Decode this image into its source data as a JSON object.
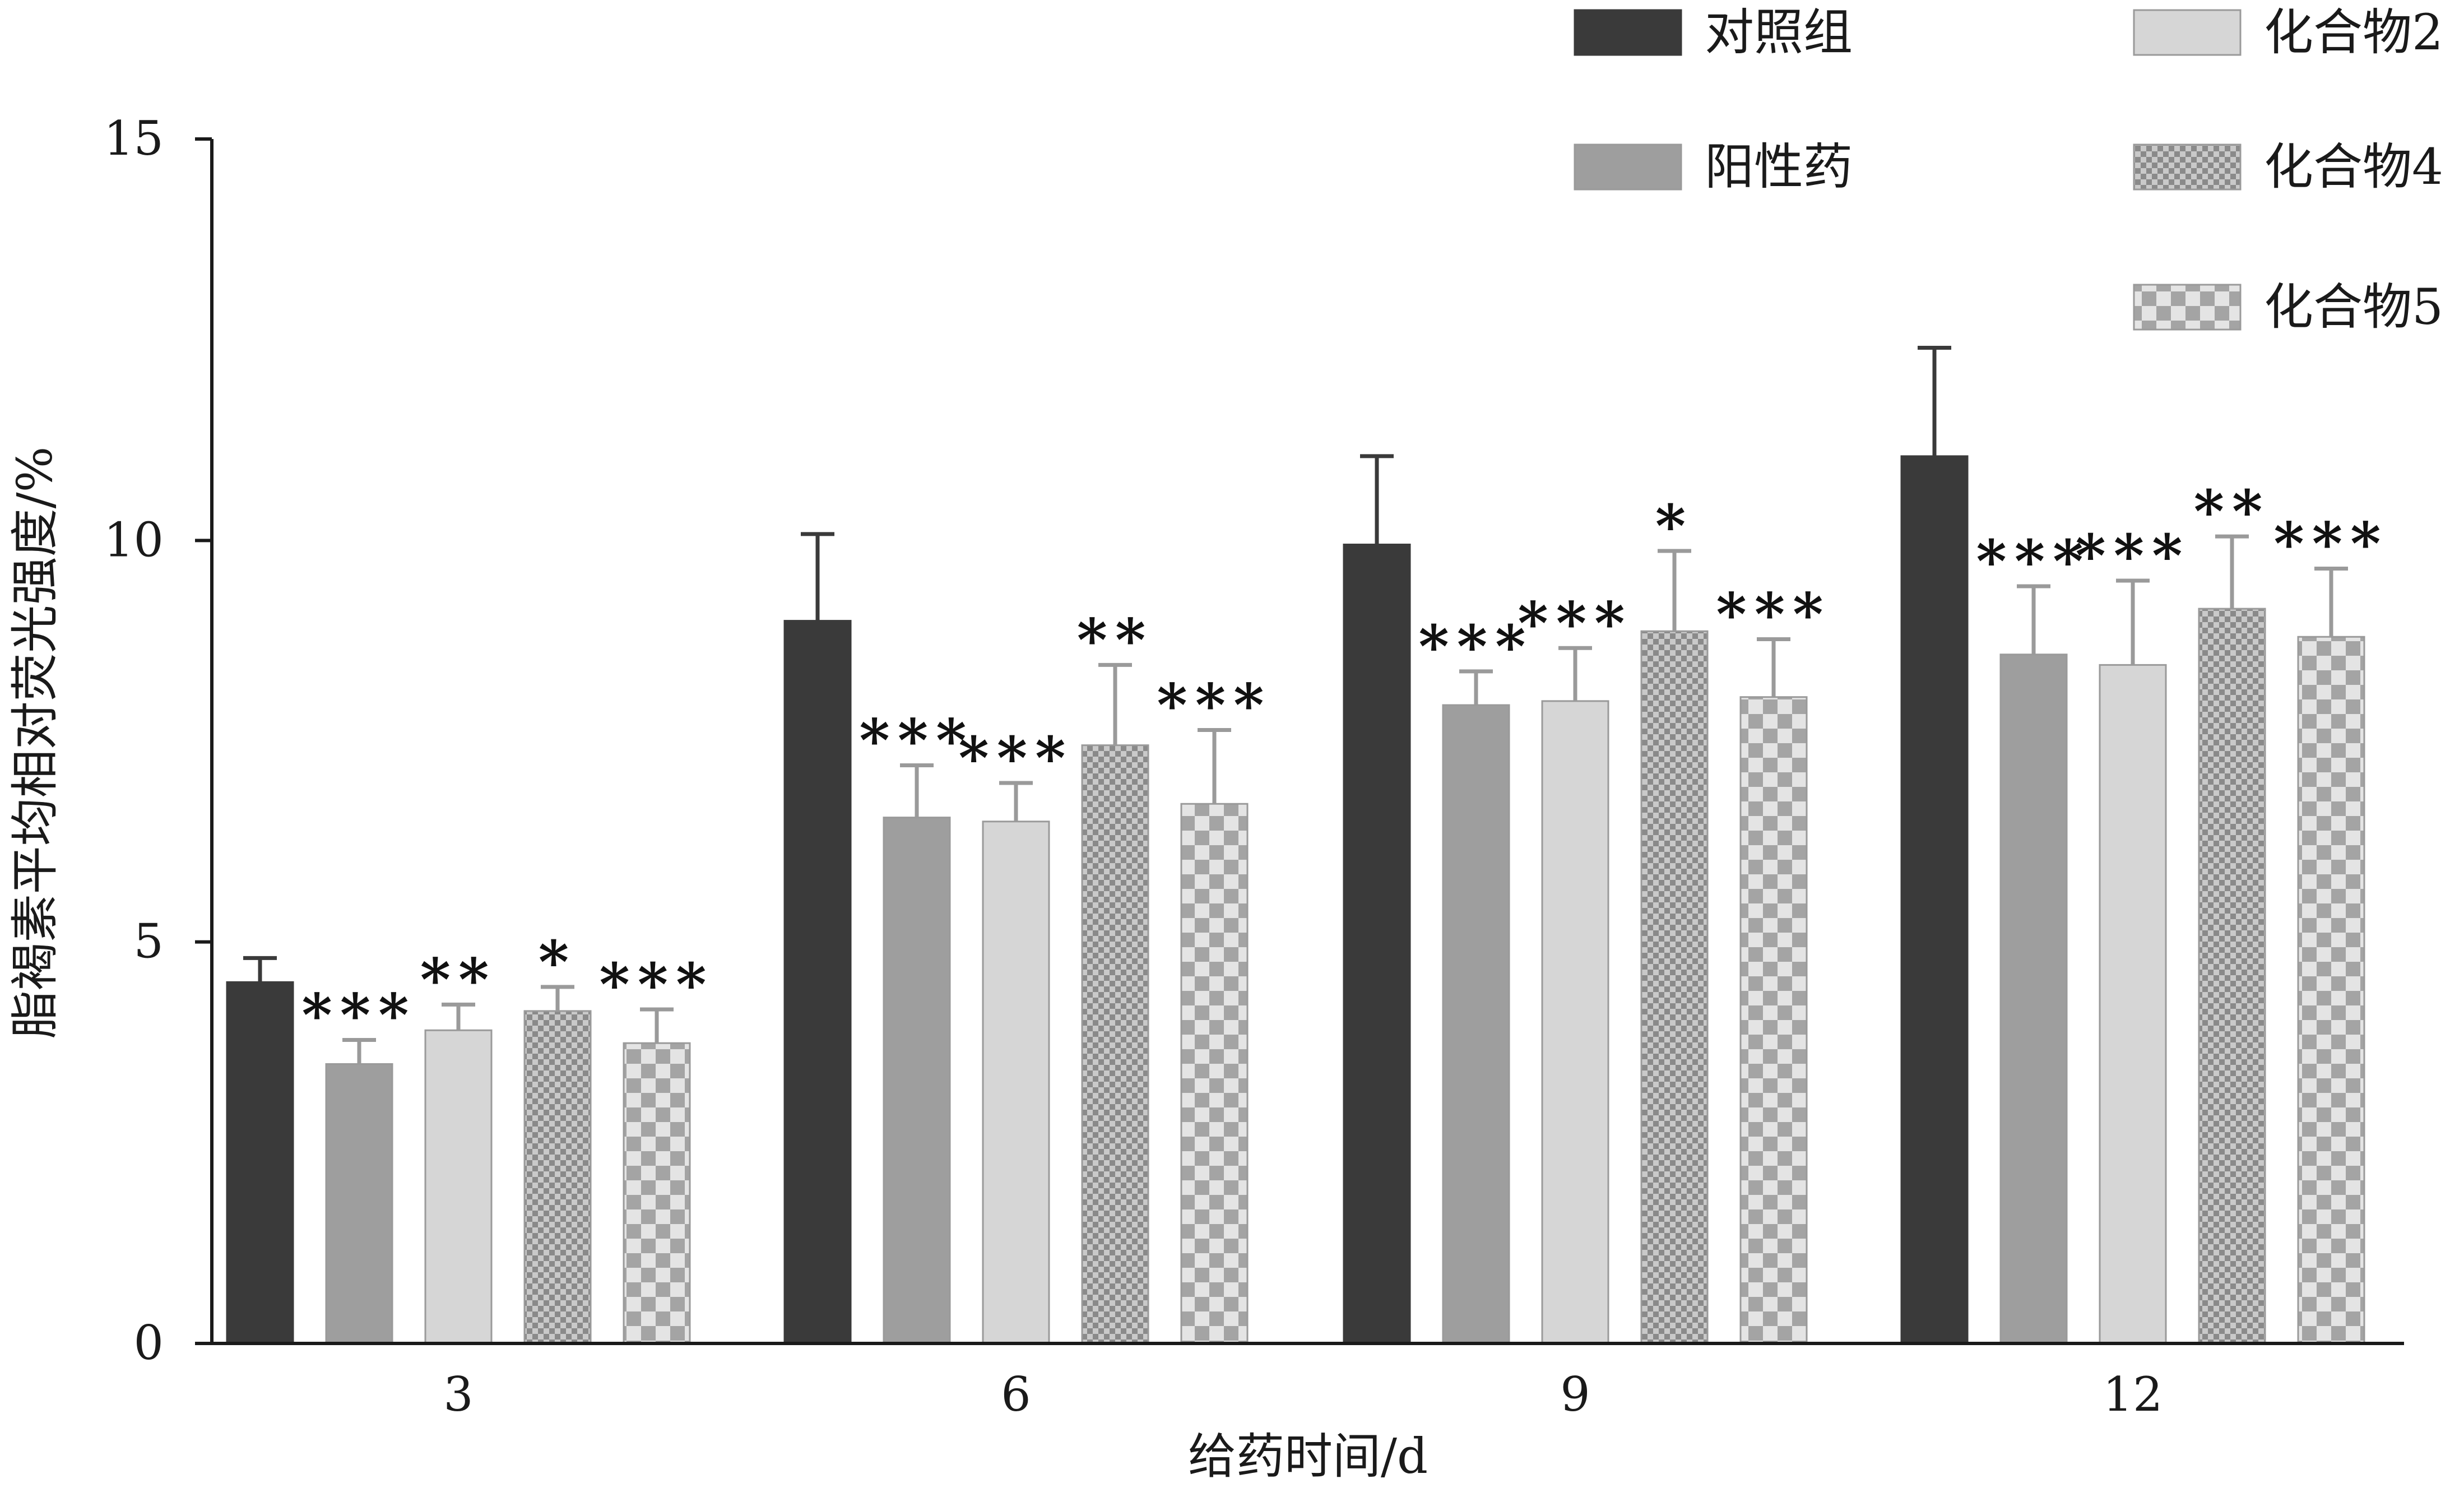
{
  "chart_data": {
    "type": "bar",
    "xlabel": "给药时间/d",
    "ylabel": "脂褐素平均相对荧光强度/%",
    "ylim": [
      0,
      15
    ],
    "yticks": [
      0,
      5,
      10,
      15
    ],
    "categories": [
      "3",
      "6",
      "9",
      "12"
    ],
    "legend_position": "top-right",
    "series": [
      {
        "name": "对照组",
        "fill": "solid",
        "color": "#3a3a3a",
        "values": [
          4.5,
          9.0,
          9.95,
          11.05
        ],
        "errors": [
          0.3,
          1.08,
          1.1,
          1.35
        ],
        "significance": [
          "",
          "",
          "",
          ""
        ]
      },
      {
        "name": "阳性药",
        "fill": "solid",
        "color": "#9e9e9e",
        "values": [
          3.48,
          6.55,
          7.95,
          8.58
        ],
        "errors": [
          0.3,
          0.65,
          0.42,
          0.85
        ],
        "significance": [
          "***",
          "***",
          "***",
          "***"
        ]
      },
      {
        "name": "化合物2",
        "fill": "solid",
        "color": "#d6d6d6",
        "values": [
          3.9,
          6.5,
          8.0,
          8.45
        ],
        "errors": [
          0.32,
          0.48,
          0.66,
          1.05
        ],
        "significance": [
          "**",
          "***",
          "***",
          "***"
        ]
      },
      {
        "name": "化合物4",
        "fill": "fine-check",
        "color": "#9e9e9e",
        "values": [
          4.14,
          7.45,
          8.87,
          9.15
        ],
        "errors": [
          0.3,
          1.0,
          1.0,
          0.9
        ],
        "significance": [
          "*",
          "**",
          "*",
          "**"
        ]
      },
      {
        "name": "化合物5",
        "fill": "coarse-check",
        "color": "#a8a8a8",
        "values": [
          3.74,
          6.72,
          8.05,
          8.8
        ],
        "errors": [
          0.42,
          0.92,
          0.72,
          0.85
        ],
        "significance": [
          "***",
          "***",
          "***",
          "***"
        ]
      }
    ]
  }
}
